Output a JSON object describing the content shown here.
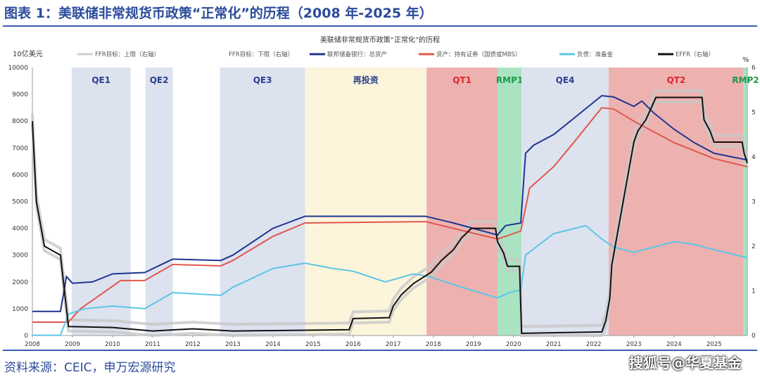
{
  "header": {
    "title": "图表 1：美联储非常规货币政策“正常化”的历程（2008 年-2025 年）"
  },
  "footer": {
    "source": "资料来源：CEIC，申万宏源研究",
    "watermark": "搜狐号@华夏基金"
  },
  "chart_data": {
    "type": "line",
    "title": "美联储非常规货币政策“正常化”的历程",
    "ylabel": "10亿美元",
    "y2label": "%",
    "xlim": [
      2008,
      2025.83
    ],
    "ylim": [
      0,
      10000
    ],
    "y2lim": [
      0,
      6
    ],
    "x_ticks": [
      "2008",
      "2009",
      "2010",
      "2011",
      "2012",
      "2013",
      "2014",
      "2015",
      "2016",
      "2017",
      "2018",
      "2019",
      "2020",
      "2021",
      "2022",
      "2023",
      "2024",
      "2025"
    ],
    "y_ticks": [
      "0",
      "1000",
      "2000",
      "3000",
      "4000",
      "5000",
      "6000",
      "7000",
      "8000",
      "9000",
      "10000"
    ],
    "y2_ticks": [
      "0",
      "1",
      "2",
      "3",
      "4",
      "5",
      "6"
    ],
    "legend": [
      "FFR目标：上限（右轴）",
      "FFR目标：下限（右轴）",
      "联邦储备银行：总资产",
      "资产：持有证券（国债或MBS）",
      "负债：准备金",
      "EFFR（右轴）"
    ],
    "legend_placement": "top",
    "periods": [
      {
        "label": "QE1",
        "start": 2008.98,
        "end": 2010.45,
        "kind": "qe"
      },
      {
        "label": "QE2",
        "start": 2010.82,
        "end": 2011.5,
        "kind": "qe"
      },
      {
        "label": "QE3",
        "start": 2012.68,
        "end": 2014.8,
        "kind": "qe"
      },
      {
        "label": "再投资",
        "start": 2014.8,
        "end": 2017.83,
        "kind": "reinvest"
      },
      {
        "label": "QT1",
        "start": 2017.83,
        "end": 2019.6,
        "kind": "qt"
      },
      {
        "label": "RMP1",
        "start": 2019.6,
        "end": 2020.2,
        "kind": "rmp"
      },
      {
        "label": "QE4",
        "start": 2020.2,
        "end": 2022.37,
        "kind": "qe"
      },
      {
        "label": "QT2",
        "start": 2022.37,
        "end": 2025.74,
        "kind": "qt"
      },
      {
        "label": "RMP2",
        "start": 2025.74,
        "end": 2025.83,
        "kind": "rmp"
      }
    ],
    "period_colors": {
      "qe": "#dde2ef",
      "reinvest": "#fcf5db",
      "qt": "#edb2b0",
      "rmp": "#a9e3c1"
    },
    "period_label_colors": {
      "qe": "#2b3f8f",
      "reinvest": "#2b3f8f",
      "qt": "#d8262a",
      "rmp": "#1a9a4a"
    },
    "series": [
      {
        "name": "联邦储备银行：总资产",
        "axis": "left",
        "color": "#1f3590",
        "points": [
          [
            2008,
            900
          ],
          [
            2008.7,
            900
          ],
          [
            2008.85,
            2200
          ],
          [
            2009.0,
            1950
          ],
          [
            2009.5,
            2000
          ],
          [
            2010,
            2300
          ],
          [
            2010.8,
            2350
          ],
          [
            2011.5,
            2850
          ],
          [
            2012.7,
            2800
          ],
          [
            2013,
            3000
          ],
          [
            2014,
            4000
          ],
          [
            2014.8,
            4450
          ],
          [
            2016,
            4450
          ],
          [
            2017.8,
            4450
          ],
          [
            2018.5,
            4200
          ],
          [
            2019.6,
            3750
          ],
          [
            2019.8,
            4100
          ],
          [
            2020.18,
            4200
          ],
          [
            2020.3,
            6800
          ],
          [
            2020.5,
            7100
          ],
          [
            2021,
            7500
          ],
          [
            2021.5,
            8100
          ],
          [
            2022.2,
            8950
          ],
          [
            2022.5,
            8900
          ],
          [
            2023.0,
            8550
          ],
          [
            2023.2,
            8750
          ],
          [
            2023.5,
            8300
          ],
          [
            2024,
            7700
          ],
          [
            2024.5,
            7200
          ],
          [
            2025,
            6800
          ],
          [
            2025.83,
            6550
          ]
        ]
      },
      {
        "name": "资产：持有证券（国债或MBS）",
        "axis": "left",
        "color": "#e0584e",
        "points": [
          [
            2008,
            500
          ],
          [
            2008.9,
            500
          ],
          [
            2009.2,
            1000
          ],
          [
            2010.2,
            2050
          ],
          [
            2010.8,
            2050
          ],
          [
            2011.5,
            2650
          ],
          [
            2012.7,
            2600
          ],
          [
            2013,
            2800
          ],
          [
            2014,
            3700
          ],
          [
            2014.8,
            4200
          ],
          [
            2017.8,
            4250
          ],
          [
            2019.6,
            3600
          ],
          [
            2019.8,
            3700
          ],
          [
            2020.18,
            3900
          ],
          [
            2020.4,
            5500
          ],
          [
            2021,
            6300
          ],
          [
            2021.5,
            7200
          ],
          [
            2022.2,
            8500
          ],
          [
            2022.5,
            8450
          ],
          [
            2023,
            8000
          ],
          [
            2024,
            7200
          ],
          [
            2025,
            6600
          ],
          [
            2025.83,
            6300
          ]
        ]
      },
      {
        "name": "负债：准备金",
        "axis": "left",
        "color": "#5cc6e6",
        "points": [
          [
            2008,
            10
          ],
          [
            2008.7,
            10
          ],
          [
            2008.9,
            800
          ],
          [
            2009.3,
            1000
          ],
          [
            2010,
            1100
          ],
          [
            2010.8,
            1000
          ],
          [
            2011.5,
            1600
          ],
          [
            2012.7,
            1500
          ],
          [
            2013,
            1800
          ],
          [
            2014,
            2500
          ],
          [
            2014.8,
            2700
          ],
          [
            2015.5,
            2500
          ],
          [
            2016,
            2400
          ],
          [
            2016.8,
            2000
          ],
          [
            2017.5,
            2300
          ],
          [
            2017.9,
            2200
          ],
          [
            2018.5,
            1900
          ],
          [
            2019.6,
            1400
          ],
          [
            2019.9,
            1600
          ],
          [
            2020.18,
            1700
          ],
          [
            2020.3,
            3000
          ],
          [
            2021,
            3800
          ],
          [
            2021.8,
            4100
          ],
          [
            2022.2,
            3600
          ],
          [
            2022.5,
            3300
          ],
          [
            2023,
            3100
          ],
          [
            2024,
            3500
          ],
          [
            2024.5,
            3400
          ],
          [
            2025,
            3200
          ],
          [
            2025.83,
            2900
          ]
        ]
      },
      {
        "name": "EFFR（右轴）",
        "axis": "right",
        "color": "#111111",
        "points": [
          [
            2008,
            4.8
          ],
          [
            2008.1,
            3.0
          ],
          [
            2008.3,
            2.0
          ],
          [
            2008.7,
            1.8
          ],
          [
            2008.9,
            0.2
          ],
          [
            2010,
            0.18
          ],
          [
            2011,
            0.1
          ],
          [
            2012,
            0.15
          ],
          [
            2013,
            0.1
          ],
          [
            2015.9,
            0.13
          ],
          [
            2016,
            0.38
          ],
          [
            2016.9,
            0.4
          ],
          [
            2017,
            0.66
          ],
          [
            2017.2,
            0.91
          ],
          [
            2017.5,
            1.16
          ],
          [
            2017.95,
            1.42
          ],
          [
            2018.2,
            1.68
          ],
          [
            2018.5,
            1.92
          ],
          [
            2018.7,
            2.18
          ],
          [
            2018.95,
            2.4
          ],
          [
            2019.55,
            2.4
          ],
          [
            2019.6,
            2.1
          ],
          [
            2019.75,
            1.85
          ],
          [
            2019.85,
            1.55
          ],
          [
            2020.15,
            1.55
          ],
          [
            2020.2,
            0.05
          ],
          [
            2022.2,
            0.08
          ],
          [
            2022.3,
            0.33
          ],
          [
            2022.4,
            0.83
          ],
          [
            2022.45,
            1.58
          ],
          [
            2022.6,
            2.33
          ],
          [
            2022.75,
            3.08
          ],
          [
            2022.9,
            3.83
          ],
          [
            2023.0,
            4.33
          ],
          [
            2023.1,
            4.58
          ],
          [
            2023.3,
            4.83
          ],
          [
            2023.55,
            5.33
          ],
          [
            2024.7,
            5.33
          ],
          [
            2024.75,
            4.83
          ],
          [
            2024.9,
            4.58
          ],
          [
            2025.0,
            4.33
          ],
          [
            2025.7,
            4.33
          ],
          [
            2025.75,
            4.08
          ],
          [
            2025.83,
            3.86
          ]
        ]
      }
    ]
  }
}
